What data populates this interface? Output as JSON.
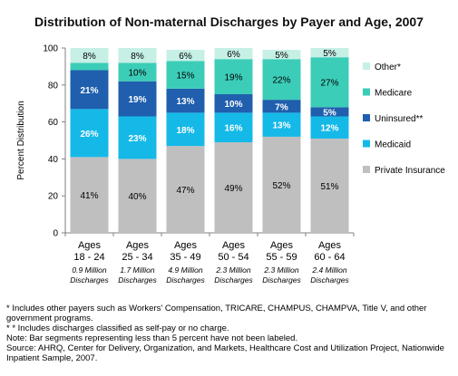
{
  "chart_data": {
    "type": "bar",
    "stacked": true,
    "title": "Distribution of Non-maternal Discharges by Payer and Age, 2007",
    "ylabel": "Percent Distribution",
    "xlabel": "",
    "ylim": [
      0,
      100
    ],
    "yticks": [
      0,
      20,
      40,
      60,
      80,
      100
    ],
    "grid": false,
    "legend_position": "right",
    "categories": [
      {
        "line1": "Ages",
        "line2": "18 - 24",
        "sub1": "0.9 Million",
        "sub2": "Discharges"
      },
      {
        "line1": "Ages",
        "line2": "25 - 34",
        "sub1": "1.7 Million",
        "sub2": "Discharges"
      },
      {
        "line1": "Ages",
        "line2": "35 - 49",
        "sub1": "4.9 Million",
        "sub2": "Discharges"
      },
      {
        "line1": "Ages",
        "line2": "50 - 54",
        "sub1": "2.3 Million",
        "sub2": "Discharges"
      },
      {
        "line1": "Ages",
        "line2": "55 - 59",
        "sub1": "2.3 Million",
        "sub2": "Discharges"
      },
      {
        "line1": "Ages",
        "line2": "60 - 64",
        "sub1": "2.4 Million",
        "sub2": "Discharges"
      }
    ],
    "series": [
      {
        "name": "Private Insurance",
        "color": "#bfbfbf",
        "values": [
          41,
          40,
          47,
          49,
          52,
          51
        ],
        "labels": [
          "41%",
          "40%",
          "47%",
          "49%",
          "52%",
          "51%"
        ],
        "label_color": "#000000"
      },
      {
        "name": "Medicaid",
        "color": "#15b9e8",
        "values": [
          26,
          23,
          18,
          16,
          13,
          12
        ],
        "labels": [
          "26%",
          "23%",
          "18%",
          "16%",
          "13%",
          "12%"
        ],
        "label_color": "#ffffff"
      },
      {
        "name": "Uninsured**",
        "color": "#1f5fae",
        "values": [
          21,
          19,
          13,
          10,
          7,
          5
        ],
        "labels": [
          "21%",
          "19%",
          "13%",
          "10%",
          "7%",
          "5%"
        ],
        "label_color": "#ffffff"
      },
      {
        "name": "Medicare",
        "color": "#3ccdb8",
        "values": [
          4,
          10,
          15,
          19,
          22,
          27
        ],
        "labels": [
          "",
          "10%",
          "15%",
          "19%",
          "22%",
          "27%"
        ],
        "label_color": "#000000"
      },
      {
        "name": "Other*",
        "color": "#c6f0e6",
        "values": [
          8,
          8,
          6,
          6,
          5,
          5
        ],
        "labels": [
          "8%",
          "8%",
          "6%",
          "6%",
          "5%",
          "5%"
        ],
        "label_color": "#000000"
      }
    ],
    "legend_order": [
      "Other*",
      "Medicare",
      "Uninsured**",
      "Medicaid",
      "Private Insurance"
    ]
  },
  "footnotes": [
    "* Includes other payers such as Workers' Compensation, TRICARE, CHAMPUS, CHAMPVA, Title V, and other government programs.",
    "* * Includes discharges classified as self-pay or no charge.",
    "Note: Bar segments representing less than 5 percent have not been labeled.",
    "Source:  AHRQ, Center for Delivery, Organization, and Markets, Healthcare Cost and Utilization Project, Nationwide Inpatient Sample, 2007."
  ]
}
